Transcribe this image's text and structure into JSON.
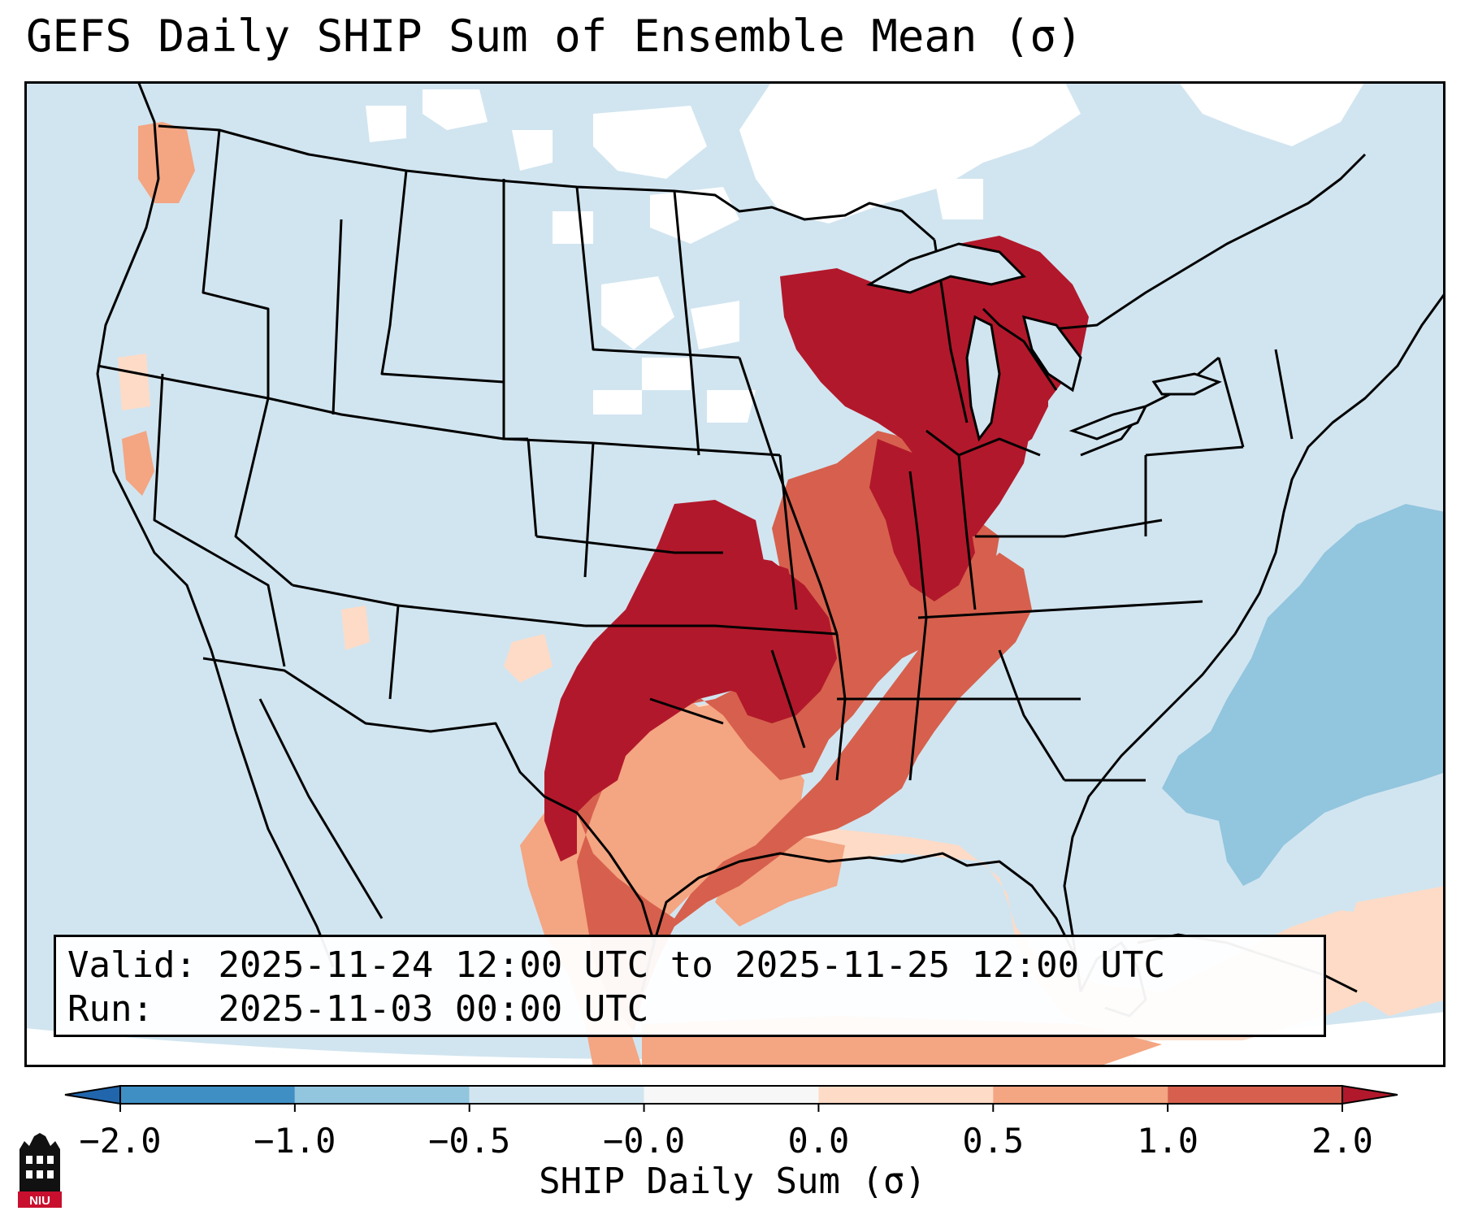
{
  "title": "GEFS Daily SHIP Sum of Ensemble Mean (σ)",
  "info": {
    "valid_label": "Valid:",
    "valid_value": "2025-11-24 12:00 UTC to 2025-11-25 12:00 UTC",
    "run_label": "Run:",
    "run_value": "2025-11-03 00:00 UTC"
  },
  "colorbar": {
    "label": "SHIP Daily Sum (σ)",
    "ticks": [
      "−2.0",
      "−1.0",
      "−0.5",
      "−0.0",
      "0.0",
      "0.5",
      "1.0",
      "2.0"
    ],
    "colors": [
      "#3f8fc5",
      "#92c5de",
      "#d1e5f0",
      "#f7f7f7",
      "#fddbc7",
      "#f4a582",
      "#d6604d",
      "#b2182b"
    ],
    "extend_low_color": "#2166ac",
    "extend_high_color": "#b2182b"
  },
  "map": {
    "background_color": "#d1e5f0",
    "boundary_color": "#000000"
  },
  "logo": {
    "text": "NIU",
    "accent": "#c8102e"
  }
}
